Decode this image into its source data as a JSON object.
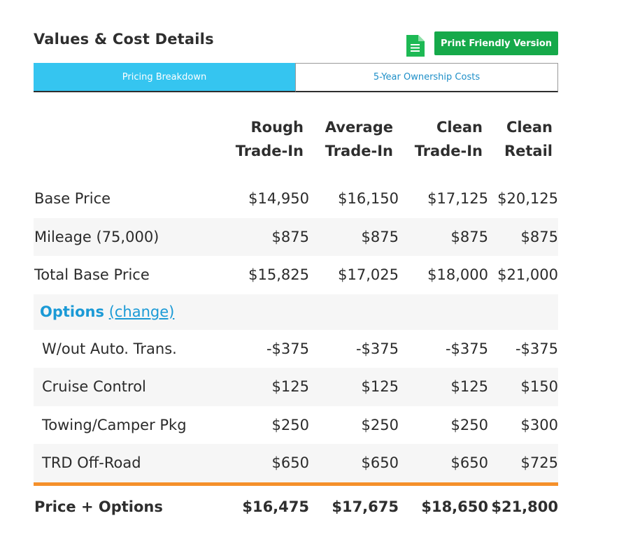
{
  "header": {
    "title": "Values & Cost Details",
    "print_label": "Print Friendly Version"
  },
  "tabs": [
    {
      "label": "Pricing Breakdown",
      "active": true
    },
    {
      "label": "5-Year Ownership Costs",
      "active": false
    }
  ],
  "columns": [
    {
      "line1": "Rough",
      "line2": "Trade-In"
    },
    {
      "line1": "Average",
      "line2": "Trade-In"
    },
    {
      "line1": "Clean",
      "line2": "Trade-In"
    },
    {
      "line1": "Clean",
      "line2": "Retail"
    }
  ],
  "rows": [
    {
      "label": "Base Price",
      "values": [
        "$14,950",
        "$16,150",
        "$17,125",
        "$20,125"
      ]
    },
    {
      "label": "Mileage (75,000)",
      "values": [
        "$875",
        "$875",
        "$875",
        "$875"
      ]
    },
    {
      "label": "Total Base Price",
      "values": [
        "$15,825",
        "$17,025",
        "$18,000",
        "$21,000"
      ]
    }
  ],
  "options": {
    "heading": "Options",
    "change_label": "(change)",
    "items": [
      {
        "label": "W/out Auto. Trans.",
        "values": [
          "-$375",
          "-$375",
          "-$375",
          "-$375"
        ]
      },
      {
        "label": "Cruise Control",
        "values": [
          "$125",
          "$125",
          "$125",
          "$150"
        ]
      },
      {
        "label": "Towing/Camper Pkg",
        "values": [
          "$250",
          "$250",
          "$250",
          "$300"
        ]
      },
      {
        "label": "TRD Off-Road",
        "values": [
          "$650",
          "$650",
          "$650",
          "$725"
        ]
      }
    ]
  },
  "total": {
    "label": "Price + Options",
    "values": [
      "$16,475",
      "$17,675",
      "$18,650",
      "$21,800"
    ]
  },
  "icons": {
    "print_doc": "document-icon"
  },
  "colors": {
    "accent_blue": "#35c5f0",
    "link_blue": "#1b9ad6",
    "button_green": "#16a94a",
    "divider_orange": "#f5902a"
  }
}
